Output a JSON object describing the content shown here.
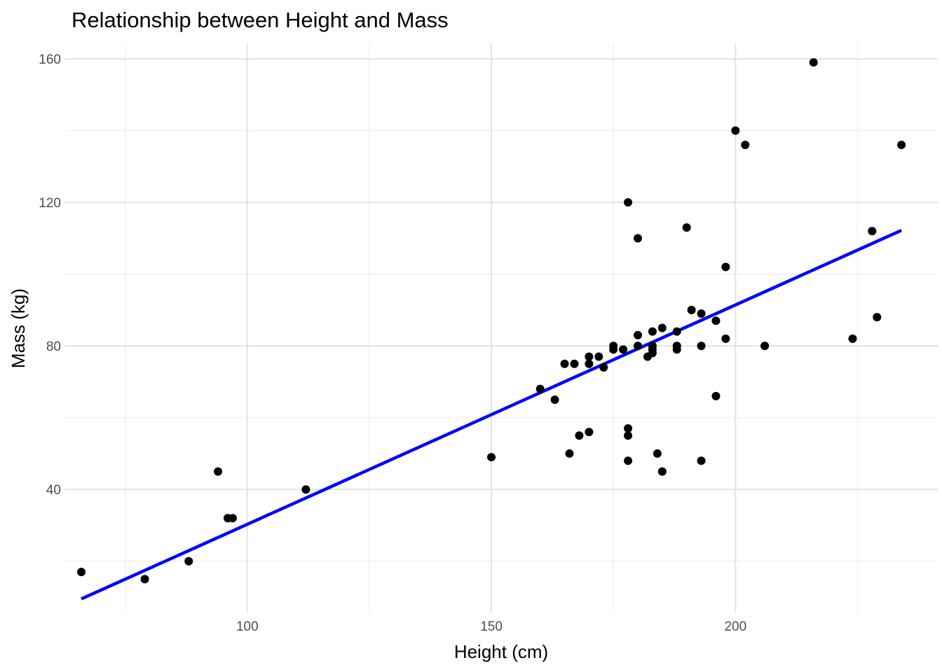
{
  "chart_data": {
    "type": "scatter",
    "title": "Relationship between Height and Mass",
    "xlabel": "Height (cm)",
    "ylabel": "Mass (kg)",
    "xlim": [
      62.55,
      241.45
    ],
    "ylim": [
      5.71,
      164.29
    ],
    "x_ticks": [
      100,
      150,
      200
    ],
    "y_ticks": [
      40,
      80,
      120,
      160
    ],
    "x_minor_ticks": [
      75,
      125,
      175,
      225
    ],
    "y_minor_ticks": [
      20,
      60,
      100,
      140
    ],
    "grid": true,
    "point_color": "#000000",
    "points": [
      {
        "x": 66,
        "y": 17
      },
      {
        "x": 79,
        "y": 15
      },
      {
        "x": 88,
        "y": 20
      },
      {
        "x": 94,
        "y": 45
      },
      {
        "x": 96,
        "y": 32
      },
      {
        "x": 97,
        "y": 32
      },
      {
        "x": 112,
        "y": 40
      },
      {
        "x": 150,
        "y": 49
      },
      {
        "x": 160,
        "y": 68
      },
      {
        "x": 163,
        "y": 65
      },
      {
        "x": 165,
        "y": 75
      },
      {
        "x": 166,
        "y": 50
      },
      {
        "x": 167,
        "y": 75
      },
      {
        "x": 168,
        "y": 55
      },
      {
        "x": 170,
        "y": 56
      },
      {
        "x": 170,
        "y": 77
      },
      {
        "x": 170,
        "y": 75
      },
      {
        "x": 172,
        "y": 77
      },
      {
        "x": 173,
        "y": 74
      },
      {
        "x": 175,
        "y": 79
      },
      {
        "x": 175,
        "y": 80
      },
      {
        "x": 177,
        "y": 79
      },
      {
        "x": 178,
        "y": 120
      },
      {
        "x": 178,
        "y": 57
      },
      {
        "x": 178,
        "y": 55
      },
      {
        "x": 178,
        "y": 48
      },
      {
        "x": 180,
        "y": 110
      },
      {
        "x": 180,
        "y": 83
      },
      {
        "x": 180,
        "y": 80
      },
      {
        "x": 182,
        "y": 77
      },
      {
        "x": 183,
        "y": 84
      },
      {
        "x": 183,
        "y": 80
      },
      {
        "x": 183,
        "y": 79
      },
      {
        "x": 183,
        "y": 78
      },
      {
        "x": 184,
        "y": 50
      },
      {
        "x": 185,
        "y": 85
      },
      {
        "x": 185,
        "y": 45
      },
      {
        "x": 188,
        "y": 84
      },
      {
        "x": 188,
        "y": 80
      },
      {
        "x": 188,
        "y": 79
      },
      {
        "x": 190,
        "y": 113
      },
      {
        "x": 191,
        "y": 90
      },
      {
        "x": 193,
        "y": 89
      },
      {
        "x": 193,
        "y": 80
      },
      {
        "x": 193,
        "y": 48
      },
      {
        "x": 196,
        "y": 87
      },
      {
        "x": 196,
        "y": 66
      },
      {
        "x": 198,
        "y": 102
      },
      {
        "x": 198,
        "y": 82
      },
      {
        "x": 200,
        "y": 140
      },
      {
        "x": 202,
        "y": 136
      },
      {
        "x": 206,
        "y": 80
      },
      {
        "x": 216,
        "y": 159
      },
      {
        "x": 224,
        "y": 82
      },
      {
        "x": 228,
        "y": 112
      },
      {
        "x": 229,
        "y": 88
      },
      {
        "x": 234,
        "y": 136
      }
    ],
    "trend_line": {
      "method": "linear fit",
      "color": "#0000ff",
      "x": [
        66,
        234
      ],
      "y": [
        9.5,
        112.2
      ]
    }
  }
}
